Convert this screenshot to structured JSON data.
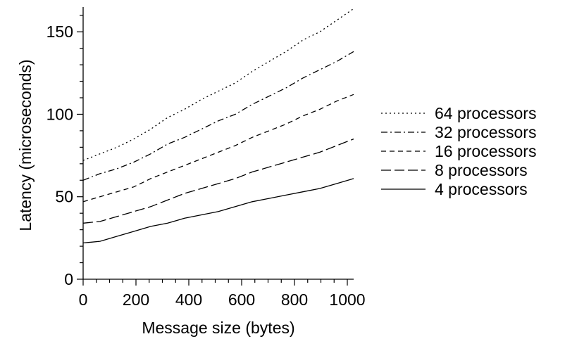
{
  "chart_data": {
    "type": "line",
    "title": "",
    "xlabel": "Message size (bytes)",
    "ylabel": "Latency (microseconds)",
    "xlim": [
      0,
      1024
    ],
    "ylim": [
      0,
      165
    ],
    "xticks": [
      0,
      200,
      400,
      600,
      800,
      1000
    ],
    "yticks": [
      0,
      50,
      100,
      150
    ],
    "grid": false,
    "legend_position": "right",
    "x": [
      0,
      64,
      128,
      192,
      256,
      320,
      384,
      448,
      512,
      576,
      640,
      704,
      768,
      832,
      896,
      960,
      1024
    ],
    "series": [
      {
        "name": "64 processors",
        "dash": "dotted",
        "values": [
          72,
          76,
          80,
          85,
          91,
          98,
          103,
          109,
          114,
          119,
          126,
          132,
          138,
          145,
          150,
          157,
          164
        ]
      },
      {
        "name": "32 processors",
        "dash": "dash-dot",
        "values": [
          60,
          64,
          67,
          71,
          76,
          82,
          86,
          91,
          96,
          100,
          106,
          111,
          116,
          122,
          127,
          132,
          138
        ]
      },
      {
        "name": "16 processors",
        "dash": "short-dash",
        "values": [
          47,
          50,
          53,
          56,
          61,
          65,
          69,
          73,
          77,
          81,
          86,
          90,
          94,
          99,
          103,
          108,
          112
        ]
      },
      {
        "name": "8 processors",
        "dash": "long-dash",
        "values": [
          34,
          35,
          38,
          41,
          44,
          48,
          52,
          55,
          58,
          61,
          65,
          68,
          71,
          74,
          77,
          81,
          85
        ]
      },
      {
        "name": "4 processors",
        "dash": "solid",
        "values": [
          22,
          23,
          26,
          29,
          32,
          34,
          37,
          39,
          41,
          44,
          47,
          49,
          51,
          53,
          55,
          58,
          61
        ]
      }
    ]
  }
}
